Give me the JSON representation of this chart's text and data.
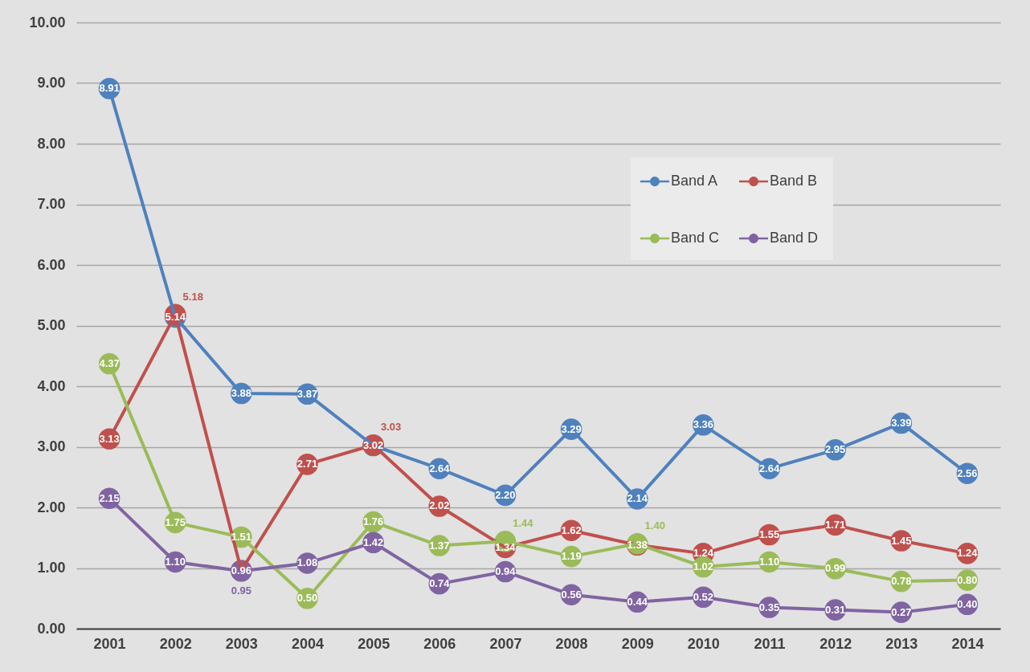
{
  "chart_data": {
    "type": "line",
    "categories": [
      "2001",
      "2002",
      "2003",
      "2004",
      "2005",
      "2006",
      "2007",
      "2008",
      "2009",
      "2010",
      "2011",
      "2012",
      "2013",
      "2014"
    ],
    "series": [
      {
        "name": "Band A",
        "color": "#4f81bd",
        "values": [
          8.91,
          5.14,
          3.88,
          3.87,
          3.02,
          2.64,
          2.2,
          3.29,
          2.14,
          3.36,
          2.64,
          2.95,
          3.39,
          2.56
        ],
        "value_labels": [
          "8.91",
          "5.14",
          "3.88",
          "3.87",
          "3.02",
          "2.64",
          "2.20",
          "3.29",
          "2.14",
          "3.36",
          "2.64",
          "2.95",
          "3.39",
          "2.56"
        ]
      },
      {
        "name": "Band B",
        "color": "#c0504d",
        "values": [
          3.13,
          5.18,
          0.96,
          2.71,
          3.03,
          2.02,
          1.34,
          1.62,
          1.38,
          1.24,
          1.55,
          1.71,
          1.45,
          1.24
        ],
        "value_labels": [
          "3.13",
          "5.18",
          "0.96",
          "2.71",
          "3.03",
          "2.02",
          "1.34",
          "1.62",
          "1.38",
          "1.24",
          "1.55",
          "1.71",
          "1.45",
          "1.24"
        ]
      },
      {
        "name": "Band C",
        "color": "#9bbb59",
        "values": [
          4.37,
          1.75,
          1.51,
          0.5,
          1.76,
          1.37,
          1.44,
          1.19,
          1.4,
          1.02,
          1.1,
          0.99,
          0.78,
          0.8
        ],
        "value_labels": [
          "4.37",
          "1.75",
          "1.51",
          "0.50",
          "1.76",
          "1.37",
          "1.44",
          "1.19",
          "1.40",
          "1.02",
          "1.10",
          "0.99",
          "0.78",
          "0.80"
        ]
      },
      {
        "name": "Band D",
        "color": "#8064a2",
        "values": [
          2.15,
          1.1,
          0.95,
          1.08,
          1.42,
          0.74,
          0.94,
          0.56,
          0.44,
          0.52,
          0.35,
          0.31,
          0.27,
          0.4
        ],
        "value_labels": [
          "2.15",
          "1.10",
          "0.95",
          "1.08",
          "1.42",
          "0.74",
          "0.94",
          "0.56",
          "0.44",
          "0.52",
          "0.35",
          "0.31",
          "0.27",
          "0.40"
        ]
      }
    ],
    "ylim": [
      0,
      10
    ],
    "yticks": [
      {
        "value": 0,
        "label": "0.00"
      },
      {
        "value": 1,
        "label": "1.00"
      },
      {
        "value": 2,
        "label": "2.00"
      },
      {
        "value": 3,
        "label": "3.00"
      },
      {
        "value": 4,
        "label": "4.00"
      },
      {
        "value": 5,
        "label": "5.00"
      },
      {
        "value": 6,
        "label": "6.00"
      },
      {
        "value": 7,
        "label": "7.00"
      },
      {
        "value": 8,
        "label": "8.00"
      },
      {
        "value": 9,
        "label": "9.00"
      },
      {
        "value": 10,
        "label": "10.00"
      }
    ],
    "grid": "y",
    "legend": "top right",
    "marker": "circle",
    "line_style": "solid"
  }
}
